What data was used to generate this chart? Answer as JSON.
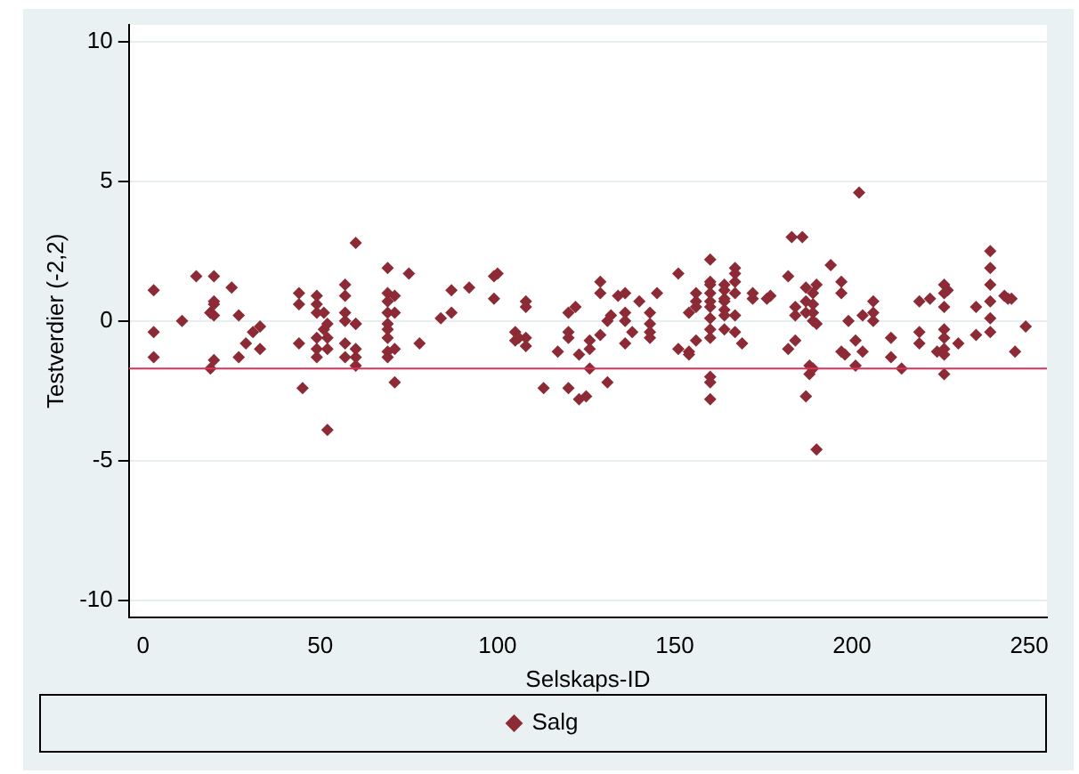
{
  "chart_data": {
    "type": "scatter",
    "xlabel": "Selskaps-ID",
    "ylabel": "Testverdier (-2,2)",
    "xlim": [
      -4,
      255
    ],
    "xticks": [
      0,
      50,
      100,
      150,
      200,
      250
    ],
    "ylim": [
      -10.6,
      10.6
    ],
    "yticks": [
      -10,
      -5,
      0,
      5,
      10
    ],
    "grid": "y",
    "legend": "bottom",
    "marker": "diamond",
    "ref_lines": [
      {
        "axis": "y",
        "value": -1.7,
        "color": "#d6335a"
      }
    ],
    "series": [
      {
        "name": "Salg",
        "color": "#8c2a35",
        "x": [
          3,
          3,
          3,
          11,
          15,
          19,
          19,
          20,
          20,
          20,
          20,
          19,
          20,
          25,
          27,
          27,
          29,
          31,
          33,
          33,
          44,
          44,
          44,
          45,
          49,
          49,
          49,
          49,
          49,
          49,
          51,
          51,
          52,
          52,
          52,
          52,
          57,
          57,
          57,
          57,
          57,
          57,
          60,
          60,
          60,
          60,
          60,
          60,
          69,
          69,
          69,
          69,
          69,
          69,
          69,
          69,
          69,
          71,
          71,
          71,
          71,
          75,
          78,
          84,
          87,
          87,
          92,
          99,
          99,
          100,
          105,
          105,
          106,
          108,
          108,
          108,
          108,
          113,
          117,
          120,
          120,
          120,
          120,
          122,
          123,
          123,
          125,
          126,
          126,
          126,
          129,
          129,
          129,
          131,
          131,
          132,
          134,
          136,
          136,
          136,
          136,
          138,
          140,
          143,
          143,
          143,
          143,
          145,
          151,
          151,
          154,
          154,
          154,
          156,
          156,
          156,
          156,
          160,
          160,
          160,
          160,
          160,
          160,
          160,
          160,
          160,
          160,
          160,
          160,
          164,
          164,
          164,
          164,
          164,
          164,
          164,
          167,
          167,
          167,
          167,
          167,
          167,
          169,
          172,
          172,
          176,
          177,
          182,
          182,
          183,
          186,
          184,
          184,
          184,
          187,
          187,
          187,
          187,
          188,
          188,
          189,
          189,
          189,
          189,
          190,
          190,
          190,
          189,
          194,
          197,
          197,
          197,
          199,
          198,
          201,
          201,
          202,
          203,
          203,
          206,
          206,
          206,
          211,
          211,
          214,
          219,
          219,
          219,
          222,
          224,
          226,
          226,
          226,
          226,
          226,
          226,
          226,
          226,
          227,
          230,
          235,
          235,
          239,
          239,
          239,
          239,
          239,
          239,
          243,
          244,
          245,
          246,
          249
        ],
        "values": [
          1.1,
          -0.4,
          -1.3,
          0,
          1.6,
          0.3,
          0.3,
          0.6,
          0.7,
          0.2,
          1.6,
          -1.7,
          -1.4,
          1.2,
          0.2,
          -1.3,
          -0.8,
          -0.4,
          -0.2,
          -1,
          1,
          0.6,
          -0.8,
          -2.4,
          0.9,
          0.6,
          0.3,
          -0.6,
          -1.3,
          -1,
          0.3,
          -0.3,
          -3.9,
          -0.1,
          -0.6,
          -1,
          1.3,
          0.9,
          0.3,
          0,
          -0.8,
          -1.3,
          2.8,
          -0.1,
          -0.1,
          -1,
          -1.3,
          -1.6,
          1.9,
          1,
          0.7,
          0.3,
          -0.1,
          -0.3,
          -0.6,
          -1.1,
          -1.3,
          0.9,
          0.3,
          -1,
          -2.2,
          1.7,
          -0.8,
          0.1,
          1.1,
          0.3,
          1.2,
          1.6,
          0.8,
          1.7,
          -0.4,
          -0.7,
          -0.6,
          0.7,
          0.5,
          -0.6,
          -0.9,
          -2.4,
          -1.1,
          0.3,
          -0.4,
          -0.6,
          -2.4,
          0.5,
          -1.2,
          -2.8,
          -2.7,
          -0.7,
          -1,
          -1.7,
          -0.5,
          1.4,
          1,
          0,
          -2.2,
          0.2,
          0.9,
          1,
          0.3,
          0,
          -0.8,
          -0.4,
          0.7,
          0.3,
          -0.1,
          -0.4,
          -0.6,
          1,
          1.7,
          -1,
          0.3,
          -1.1,
          -1.2,
          1,
          0.7,
          0.5,
          -0.7,
          2.2,
          1.4,
          1.3,
          1,
          0.7,
          0.5,
          0.1,
          -0.3,
          -0.6,
          -2,
          -2.2,
          -2.8,
          1.3,
          1.1,
          0.8,
          0.7,
          0.4,
          0.2,
          -0.3,
          1.9,
          1.7,
          1.4,
          1,
          0.2,
          -0.4,
          -0.8,
          1,
          0.8,
          0.8,
          0.9,
          1.6,
          -1,
          3,
          3,
          0.5,
          -0.7,
          0.2,
          1.2,
          0.7,
          0.3,
          -2.7,
          -1.6,
          -1.9,
          1,
          0.6,
          0.3,
          0,
          1.3,
          -0.1,
          -4.6,
          -1.7,
          2,
          1.4,
          1,
          -1.1,
          0,
          -1.2,
          -0.7,
          -1.6,
          4.6,
          0.2,
          -1.1,
          0.7,
          0,
          0.3,
          -0.6,
          -1.3,
          -1.7,
          0.7,
          -0.4,
          -0.8,
          0.8,
          -1.1,
          1.3,
          1,
          0.5,
          -0.3,
          -0.6,
          -1,
          -1.2,
          -1.9,
          1.1,
          -0.8,
          0.5,
          -0.5,
          2.5,
          1.9,
          1.3,
          0.7,
          0.1,
          -0.4,
          0.9,
          0.8,
          0.8,
          -1.1,
          -0.2
        ]
      }
    ]
  }
}
